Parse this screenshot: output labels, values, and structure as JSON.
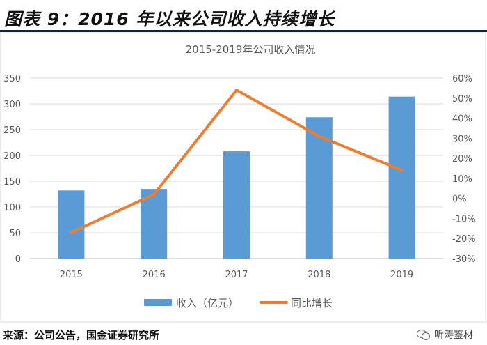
{
  "figure": {
    "title": "图表 9：2016 年以来公司收入持续增长",
    "source": "来源：公司公告，国金证券研究所",
    "watermark": "听涛鉴材",
    "watermark_icon": "wechat-icon"
  },
  "chart_data": {
    "type": "bar",
    "title": "2015-2019年公司收入情况",
    "categories": [
      "2015",
      "2016",
      "2017",
      "2018",
      "2019"
    ],
    "series": [
      {
        "name": "收入（亿元）",
        "type": "bar",
        "axis": "left",
        "color": "#5b9bd5",
        "values": [
          132,
          135,
          208,
          274,
          314
        ]
      },
      {
        "name": "同比增长",
        "type": "line",
        "axis": "right",
        "color": "#ed7d31",
        "values": [
          -17,
          2,
          54,
          31,
          14
        ]
      }
    ],
    "y_left": {
      "min": 0,
      "max": 350,
      "step": 50,
      "ticks": [
        "0",
        "50",
        "100",
        "150",
        "200",
        "250",
        "300",
        "350"
      ]
    },
    "y_right": {
      "min": -30,
      "max": 60,
      "step": 10,
      "ticks": [
        "-30%",
        "-20%",
        "-10%",
        "0%",
        "10%",
        "20%",
        "30%",
        "40%",
        "50%",
        "60%"
      ]
    },
    "grid": "horizontal",
    "legend": "bottom-center"
  }
}
